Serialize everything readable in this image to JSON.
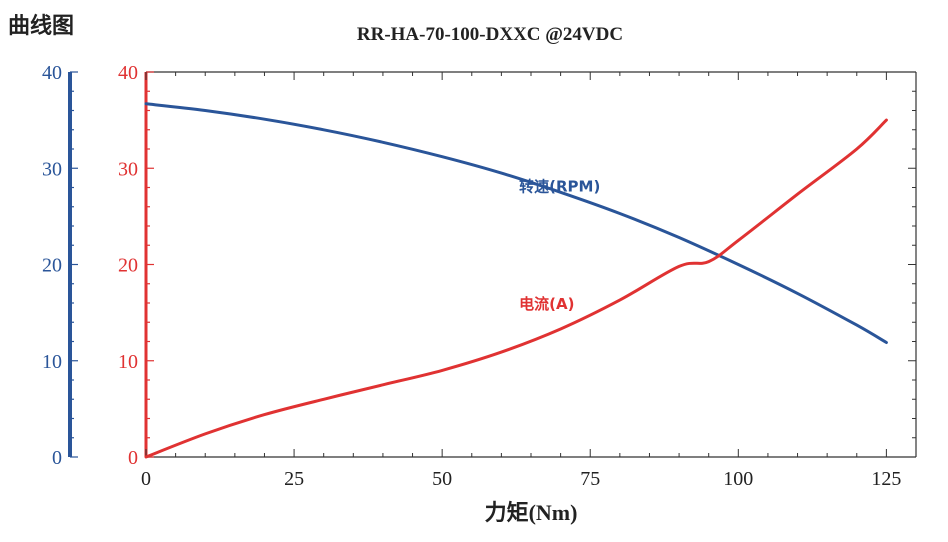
{
  "page_title": "曲线图",
  "chart_data": {
    "type": "line",
    "title": "RR-HA-70-100-DXXC @24VDC",
    "xlabel": "力矩(Nm)",
    "ylabel_left": "",
    "ylabel_right": "",
    "x_ticks": [
      0,
      25,
      50,
      75,
      100,
      125
    ],
    "xlim": [
      0,
      130
    ],
    "y_left_ticks": [
      0,
      10,
      20,
      30,
      40
    ],
    "y_left_range": [
      0,
      40
    ],
    "y_inner_ticks": [
      0,
      10,
      20,
      30,
      40
    ],
    "y_inner_range": [
      0,
      40
    ],
    "grid": false,
    "colors": {
      "rpm": "#2a5599",
      "current": "#e03232"
    },
    "series": [
      {
        "name": "转速(RPM)",
        "color": "#2a5599",
        "x": [
          0,
          10,
          20,
          30,
          40,
          50,
          60,
          70,
          80,
          90,
          100,
          110,
          120,
          125
        ],
        "y": [
          36.7,
          36.0,
          35.1,
          34.0,
          32.7,
          31.2,
          29.5,
          27.5,
          25.3,
          22.8,
          20.0,
          17.0,
          13.7,
          11.9
        ]
      },
      {
        "name": "电流(A)",
        "color": "#e03232",
        "x": [
          0,
          10,
          20,
          30,
          40,
          50,
          60,
          70,
          80,
          90,
          95,
          100,
          110,
          120,
          125
        ],
        "y": [
          0,
          2.4,
          4.4,
          6.0,
          7.5,
          9.0,
          10.9,
          13.3,
          16.3,
          19.8,
          20.3,
          22.5,
          27.3,
          32.0,
          35.0
        ]
      }
    ]
  }
}
